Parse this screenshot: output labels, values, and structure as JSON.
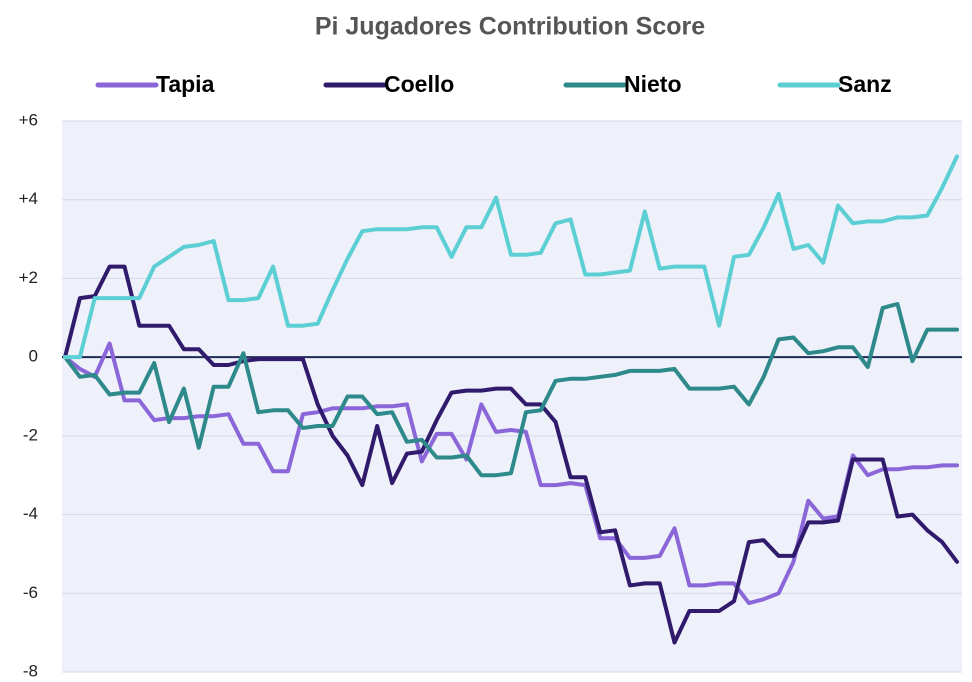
{
  "chart_data": {
    "type": "line",
    "title": "Pi Jugadores Contribution Score",
    "categories": [
      null,
      null,
      null,
      null,
      null,
      null,
      null,
      null,
      null,
      null,
      null,
      null,
      null,
      null,
      null,
      null,
      null,
      null,
      null,
      null,
      null,
      null,
      null,
      null,
      null,
      null,
      null,
      null,
      null,
      null,
      null,
      null,
      null,
      null,
      null,
      null,
      null,
      null,
      null,
      null,
      null,
      null,
      null,
      null,
      null,
      null,
      null,
      null,
      null,
      null,
      null,
      null,
      null,
      null,
      null,
      null,
      null,
      null,
      null,
      null,
      null
    ],
    "series": [
      {
        "name": "Tapia",
        "color": "#8a66d9",
        "values": [
          0,
          -0.3,
          -0.5,
          0.35,
          -1.1,
          -1.1,
          -1.6,
          -1.55,
          -1.55,
          -1.5,
          -1.5,
          -1.45,
          -2.2,
          -2.2,
          -2.9,
          -2.9,
          -1.45,
          -1.4,
          -1.3,
          -1.3,
          -1.3,
          -1.25,
          -1.25,
          -1.2,
          -2.65,
          -1.95,
          -1.95,
          -2.6,
          -1.2,
          -1.9,
          -1.85,
          -1.9,
          -3.25,
          -3.25,
          -3.2,
          -3.25,
          -4.6,
          -4.6,
          -5.1,
          -5.1,
          -5.05,
          -4.35,
          -5.8,
          -5.8,
          -5.75,
          -5.75,
          -6.25,
          -6.15,
          -6.0,
          -5.2,
          -3.65,
          -4.1,
          -4.05,
          -2.5,
          -3.0,
          -2.85,
          -2.85,
          -2.8,
          -2.8,
          -2.75,
          -2.75
        ]
      },
      {
        "name": "Coello",
        "color": "#2f1a6b",
        "values": [
          0,
          1.5,
          1.55,
          2.3,
          2.3,
          0.8,
          0.8,
          0.8,
          0.2,
          0.2,
          -0.2,
          -0.2,
          -0.1,
          -0.05,
          -0.05,
          -0.05,
          -0.05,
          -1.2,
          -2.0,
          -2.5,
          -3.25,
          -1.75,
          -3.2,
          -2.45,
          -2.4,
          -1.6,
          -0.9,
          -0.85,
          -0.85,
          -0.8,
          -0.8,
          -1.2,
          -1.2,
          -1.65,
          -3.05,
          -3.05,
          -4.45,
          -4.4,
          -5.8,
          -5.75,
          -5.75,
          -7.25,
          -6.45,
          -6.45,
          -6.45,
          -6.2,
          -4.7,
          -4.65,
          -5.05,
          -5.05,
          -4.2,
          -4.2,
          -4.15,
          -2.6,
          -2.6,
          -2.6,
          -4.05,
          -4.0,
          -4.4,
          -4.7,
          -5.2
        ]
      },
      {
        "name": "Nieto",
        "color": "#2e8a8a",
        "values": [
          0,
          -0.5,
          -0.45,
          -0.95,
          -0.9,
          -0.9,
          -0.15,
          -1.65,
          -0.8,
          -2.3,
          -0.75,
          -0.75,
          0.1,
          -1.4,
          -1.35,
          -1.35,
          -1.8,
          -1.75,
          -1.75,
          -1.0,
          -1.0,
          -1.45,
          -1.4,
          -2.15,
          -2.1,
          -2.55,
          -2.55,
          -2.5,
          -3.0,
          -3.0,
          -2.95,
          -1.4,
          -1.35,
          -0.6,
          -0.55,
          -0.55,
          -0.5,
          -0.45,
          -0.35,
          -0.35,
          -0.35,
          -0.3,
          -0.8,
          -0.8,
          -0.8,
          -0.75,
          -1.2,
          -0.5,
          0.45,
          0.5,
          0.1,
          0.15,
          0.25,
          0.25,
          -0.25,
          1.25,
          1.35,
          -0.1,
          0.7,
          0.7,
          0.7
        ]
      },
      {
        "name": "Sanz",
        "color": "#5ccfd4",
        "values": [
          0,
          0,
          1.5,
          1.5,
          1.5,
          1.5,
          2.3,
          2.55,
          2.8,
          2.85,
          2.95,
          1.45,
          1.45,
          1.5,
          2.3,
          0.8,
          0.8,
          0.85,
          1.7,
          2.5,
          3.2,
          3.25,
          3.25,
          3.25,
          3.3,
          3.3,
          2.55,
          3.3,
          3.3,
          4.05,
          2.6,
          2.6,
          2.65,
          3.4,
          3.5,
          2.1,
          2.1,
          2.15,
          2.2,
          3.7,
          2.25,
          2.3,
          2.3,
          2.3,
          0.8,
          2.55,
          2.6,
          3.3,
          4.15,
          2.75,
          2.85,
          2.4,
          3.85,
          3.4,
          3.45,
          3.45,
          3.55,
          3.55,
          3.6,
          4.3,
          5.1
        ]
      }
    ],
    "ylim": [
      -8,
      6
    ],
    "yticks": [
      -8,
      -6,
      -4,
      -2,
      0,
      {
        "value": 2,
        "label": "+2"
      },
      {
        "value": 4,
        "label": "+4"
      },
      {
        "value": 6,
        "label": "+6"
      }
    ],
    "grid": true,
    "zero_line": true,
    "legend": "top"
  }
}
